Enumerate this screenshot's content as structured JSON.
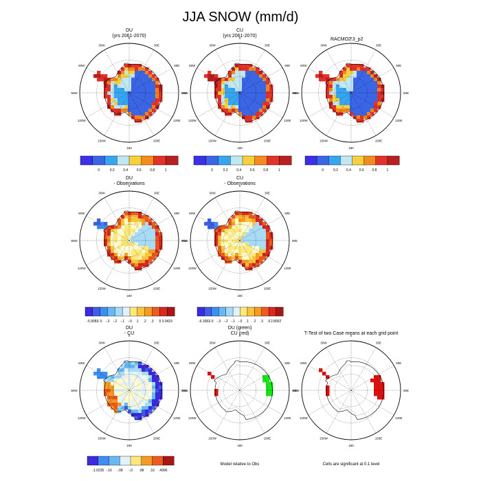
{
  "main_title": "JJA SNOW (mm/d)",
  "colors": {
    "seq": [
      "#3c2fe8",
      "#3a66e6",
      "#37a6f0",
      "#bfe7f4",
      "#f7d03c",
      "#f58b1c",
      "#e2322a",
      "#b8201f"
    ],
    "div": [
      "#3b2ae0",
      "#3f5fe6",
      "#3d8ef0",
      "#66b9f4",
      "#a7dbf6",
      "#e2f2f8",
      "#fffad0",
      "#fde97a",
      "#f9c43c",
      "#f59a22",
      "#ee5a20",
      "#d8281f",
      "#a81714"
    ],
    "green": "#16e816",
    "red": "#dd1010"
  },
  "chart_data": [
    {
      "type": "heatmap",
      "panel": "row1-col1",
      "title": [
        "DU",
        "(yrs 2061-2070)"
      ],
      "colorbar": {
        "scale": "seq",
        "labels": [
          "0",
          "0.2",
          "0.4",
          "0.6",
          "0.8",
          "1"
        ]
      },
      "longitude_labels": [
        "0",
        "30E",
        "60E",
        "90E",
        "120E",
        "150E",
        "180",
        "150W",
        "120W",
        "90W",
        "60W",
        "30W"
      ]
    },
    {
      "type": "heatmap",
      "panel": "row1-col2",
      "title": [
        "CU",
        "(yrs 2061-2070)"
      ],
      "colorbar": {
        "scale": "seq",
        "labels": [
          "0",
          "0.2",
          "0.4",
          "0.6",
          "0.8",
          "1"
        ]
      },
      "longitude_labels": [
        "0",
        "30E",
        "60E",
        "90E",
        "120E",
        "150E",
        "180",
        "150W",
        "120W",
        "90W",
        "60W",
        "30W"
      ]
    },
    {
      "type": "heatmap",
      "panel": "row1-col3",
      "title": [
        "",
        ""
      ],
      "right_label": "RACMO2.3_p2",
      "colorbar": {
        "scale": "seq",
        "labels": [
          "0",
          "0.2",
          "0.4",
          "0.6",
          "0.8",
          "1"
        ]
      },
      "longitude_labels": [
        "0",
        "30E",
        "60E",
        "90E",
        "120E",
        "150E",
        "180",
        "150W",
        "120W",
        "90W",
        "60W",
        "30W"
      ]
    },
    {
      "type": "heatmap",
      "panel": "row2-col1",
      "title": [
        "DU",
        "- Observations"
      ],
      "colorbar": {
        "scale": "div",
        "labels": [
          "-5.9083",
          "-.5",
          "-.3",
          "-.2",
          "-.1",
          "-.0",
          ".1",
          ".2",
          ".3",
          ".5",
          "3.0419"
        ]
      },
      "longitude_labels": [
        "0",
        "30E",
        "60E",
        "90E",
        "120E",
        "150E",
        "180",
        "150W",
        "120W",
        "90W",
        "60W",
        "30W"
      ]
    },
    {
      "type": "heatmap",
      "panel": "row2-col2",
      "title": [
        "CU",
        "- Observations"
      ],
      "colorbar": {
        "scale": "div",
        "labels": [
          "-6.1682",
          "-.5",
          "-.3",
          "-.2",
          "-.1",
          "-.0",
          ".1",
          ".2",
          ".3",
          ".5",
          "2.8002"
        ]
      },
      "longitude_labels": [
        "0",
        "30E",
        "60E",
        "90E",
        "120E",
        "150E",
        "180",
        "150W",
        "120W",
        "90W",
        "60W",
        "30W"
      ]
    },
    {
      "type": "heatmap",
      "panel": "row3-col1",
      "title": [
        "DU",
        "- CU"
      ],
      "colorbar": {
        "scale": "div",
        "labels": [
          "-1.0235",
          "-.16",
          "-.08",
          "-.0",
          ".08",
          ".16",
          ".4996"
        ]
      },
      "longitude_labels": [
        "0",
        "30E",
        "60E",
        "90E",
        "120E",
        "150E",
        "180",
        "150W",
        "120W",
        "90W",
        "60W",
        "30W"
      ]
    },
    {
      "type": "heatmap",
      "panel": "row3-col2",
      "title": [
        "DU (green)",
        "CU (red)"
      ],
      "footer": "Model relative to Obs",
      "longitude_labels": [
        "0",
        "30E",
        "60E",
        "90E",
        "120E",
        "150E",
        "180",
        "150W",
        "120W",
        "90W",
        "60W",
        "30W"
      ]
    },
    {
      "type": "heatmap",
      "panel": "row3-col3",
      "title": [
        "T-Test of two Case means at each grid point",
        ""
      ],
      "footer": "Cells are significant at 0.1 level",
      "longitude_labels": [
        "0",
        "30E",
        "60E",
        "90E",
        "120E",
        "150E",
        "180",
        "150W",
        "120W",
        "90W",
        "60W",
        "30W"
      ]
    }
  ]
}
